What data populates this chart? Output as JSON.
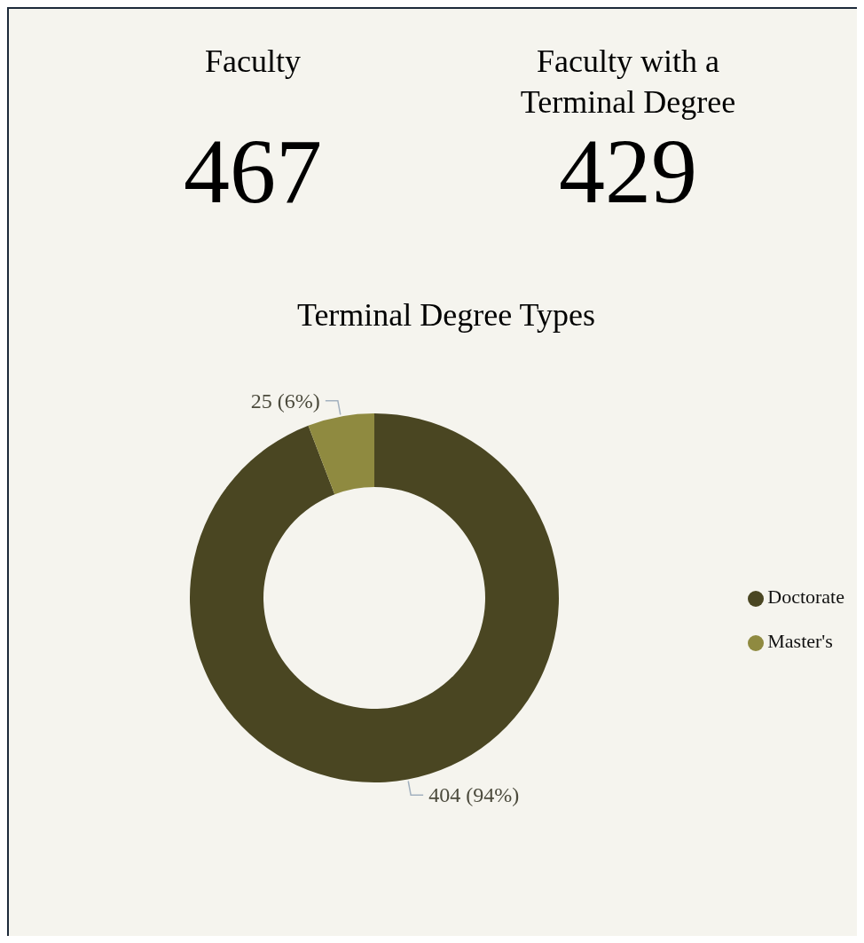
{
  "chart_data": [
    {
      "type": "other",
      "title": "Faculty",
      "annotations": [
        "467"
      ]
    },
    {
      "type": "other",
      "title": "Faculty with a Terminal Degree",
      "annotations": [
        "429"
      ]
    },
    {
      "type": "donut",
      "title": "Terminal Degree Types",
      "categories": [
        "Doctorate",
        "Master's"
      ],
      "values": [
        404,
        25
      ],
      "colors": [
        "#4a4622",
        "#8f8a40"
      ],
      "value_labels": [
        "404 (94%)",
        "25 (6%)"
      ],
      "legend": "right"
    }
  ]
}
